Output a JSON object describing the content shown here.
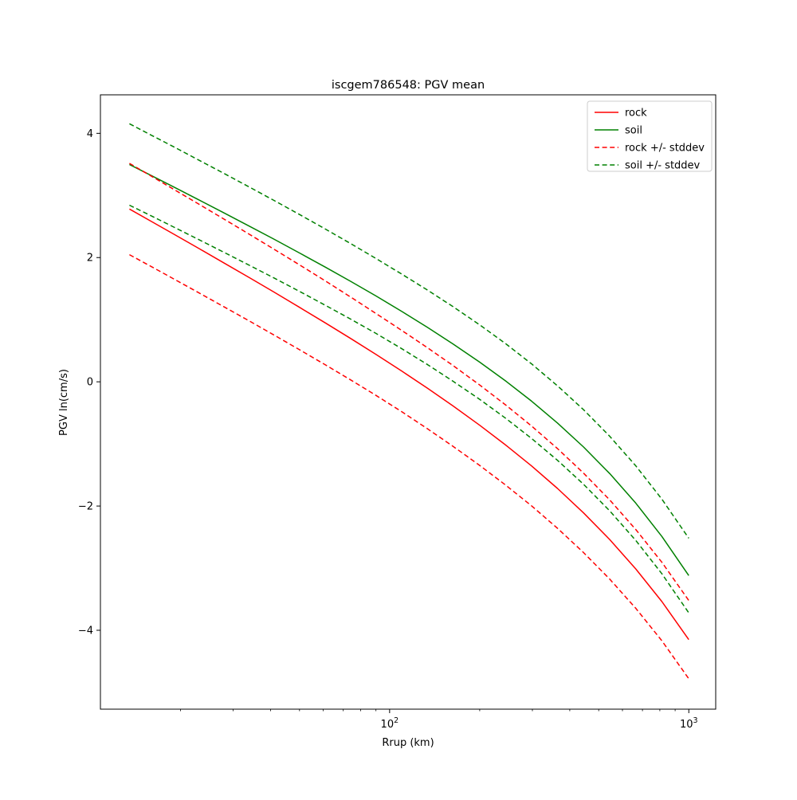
{
  "figure": {
    "title": "iscgem786548: PGV mean",
    "xlabel": "Rrup (km)",
    "ylabel": "PGV ln(cm/s)",
    "background_color": "#ffffff",
    "spine_color": "#000000",
    "text_color": "#000000"
  },
  "legend": {
    "position": "upper right",
    "border_color": "#cccccc",
    "entries": [
      {
        "label": "rock",
        "color": "#ff0000",
        "dash": false
      },
      {
        "label": "soil",
        "color": "#008000",
        "dash": false
      },
      {
        "label": "rock +/- stddev",
        "color": "#ff0000",
        "dash": true
      },
      {
        "label": "soil +/- stddev",
        "color": "#008000",
        "dash": true
      }
    ]
  },
  "chart_data": {
    "type": "line",
    "title": "iscgem786548: PGV mean",
    "xlabel": "Rrup (km)",
    "ylabel": "PGV ln(cm/s)",
    "x_scale": "log",
    "grid": false,
    "xlim": [
      10.8,
      1230
    ],
    "ylim": [
      -5.27,
      4.62
    ],
    "x_ticks_major": [
      100,
      1000
    ],
    "x_tick_labels": [
      {
        "base": "10",
        "exp": "2"
      },
      {
        "base": "10",
        "exp": "3"
      }
    ],
    "x_ticks_minor": [
      20,
      30,
      40,
      50,
      60,
      70,
      80,
      90,
      200,
      300,
      400,
      500,
      600,
      700,
      800,
      900
    ],
    "y_ticks": [
      4,
      2,
      0,
      -2,
      -4
    ],
    "x": [
      13.5,
      16,
      19,
      23,
      28,
      34,
      41,
      50,
      61,
      74,
      90,
      110,
      134,
      163,
      200,
      244,
      298,
      364,
      445,
      544,
      665,
      813,
      1000
    ],
    "series": [
      {
        "name": "rock",
        "color": "#ff0000",
        "style": "solid",
        "values": [
          2.782,
          2.581,
          2.377,
          2.149,
          1.911,
          1.676,
          1.446,
          1.199,
          0.948,
          0.699,
          0.441,
          0.17,
          -0.106,
          -0.389,
          -0.699,
          -1.016,
          -1.354,
          -1.717,
          -2.11,
          -2.539,
          -3.012,
          -3.538,
          -4.15
        ]
      },
      {
        "name": "soil",
        "color": "#008000",
        "style": "solid",
        "values": [
          3.499,
          3.319,
          3.136,
          2.931,
          2.718,
          2.505,
          2.298,
          2.074,
          1.845,
          1.618,
          1.382,
          1.131,
          0.875,
          0.609,
          0.317,
          0.015,
          -0.311,
          -0.664,
          -1.05,
          -1.477,
          -1.953,
          -2.49,
          -3.119
        ]
      },
      {
        "name": "rock + stddev",
        "color": "#ff0000",
        "style": "dashed",
        "values": [
          3.517,
          3.309,
          3.098,
          2.863,
          2.617,
          2.374,
          2.137,
          1.882,
          1.623,
          1.366,
          1.1,
          0.824,
          0.546,
          0.261,
          -0.052,
          -0.371,
          -0.711,
          -1.076,
          -1.471,
          -1.902,
          -2.378,
          -2.906,
          -3.52
        ]
      },
      {
        "name": "rock - stddev",
        "color": "#ff0000",
        "style": "dashed",
        "values": [
          2.047,
          1.853,
          1.656,
          1.435,
          1.205,
          0.978,
          0.755,
          0.516,
          0.273,
          0.032,
          -0.218,
          -0.484,
          -0.758,
          -1.039,
          -1.346,
          -1.661,
          -1.997,
          -2.358,
          -2.749,
          -3.176,
          -3.646,
          -4.17,
          -4.78
        ]
      },
      {
        "name": "soil + stddev",
        "color": "#008000",
        "style": "dashed",
        "values": [
          4.154,
          3.969,
          3.782,
          3.571,
          3.353,
          3.135,
          2.922,
          2.693,
          2.459,
          2.226,
          1.985,
          1.731,
          1.475,
          1.209,
          0.917,
          0.615,
          0.289,
          -0.064,
          -0.45,
          -0.877,
          -1.353,
          -1.89,
          -2.519
        ]
      },
      {
        "name": "soil - stddev",
        "color": "#008000",
        "style": "dashed",
        "values": [
          2.844,
          2.669,
          2.49,
          2.291,
          2.083,
          1.875,
          1.674,
          1.455,
          1.231,
          1.01,
          0.779,
          0.531,
          0.275,
          0.009,
          -0.283,
          -0.585,
          -0.911,
          -1.264,
          -1.65,
          -2.077,
          -2.553,
          -3.09,
          -3.719
        ]
      }
    ]
  }
}
